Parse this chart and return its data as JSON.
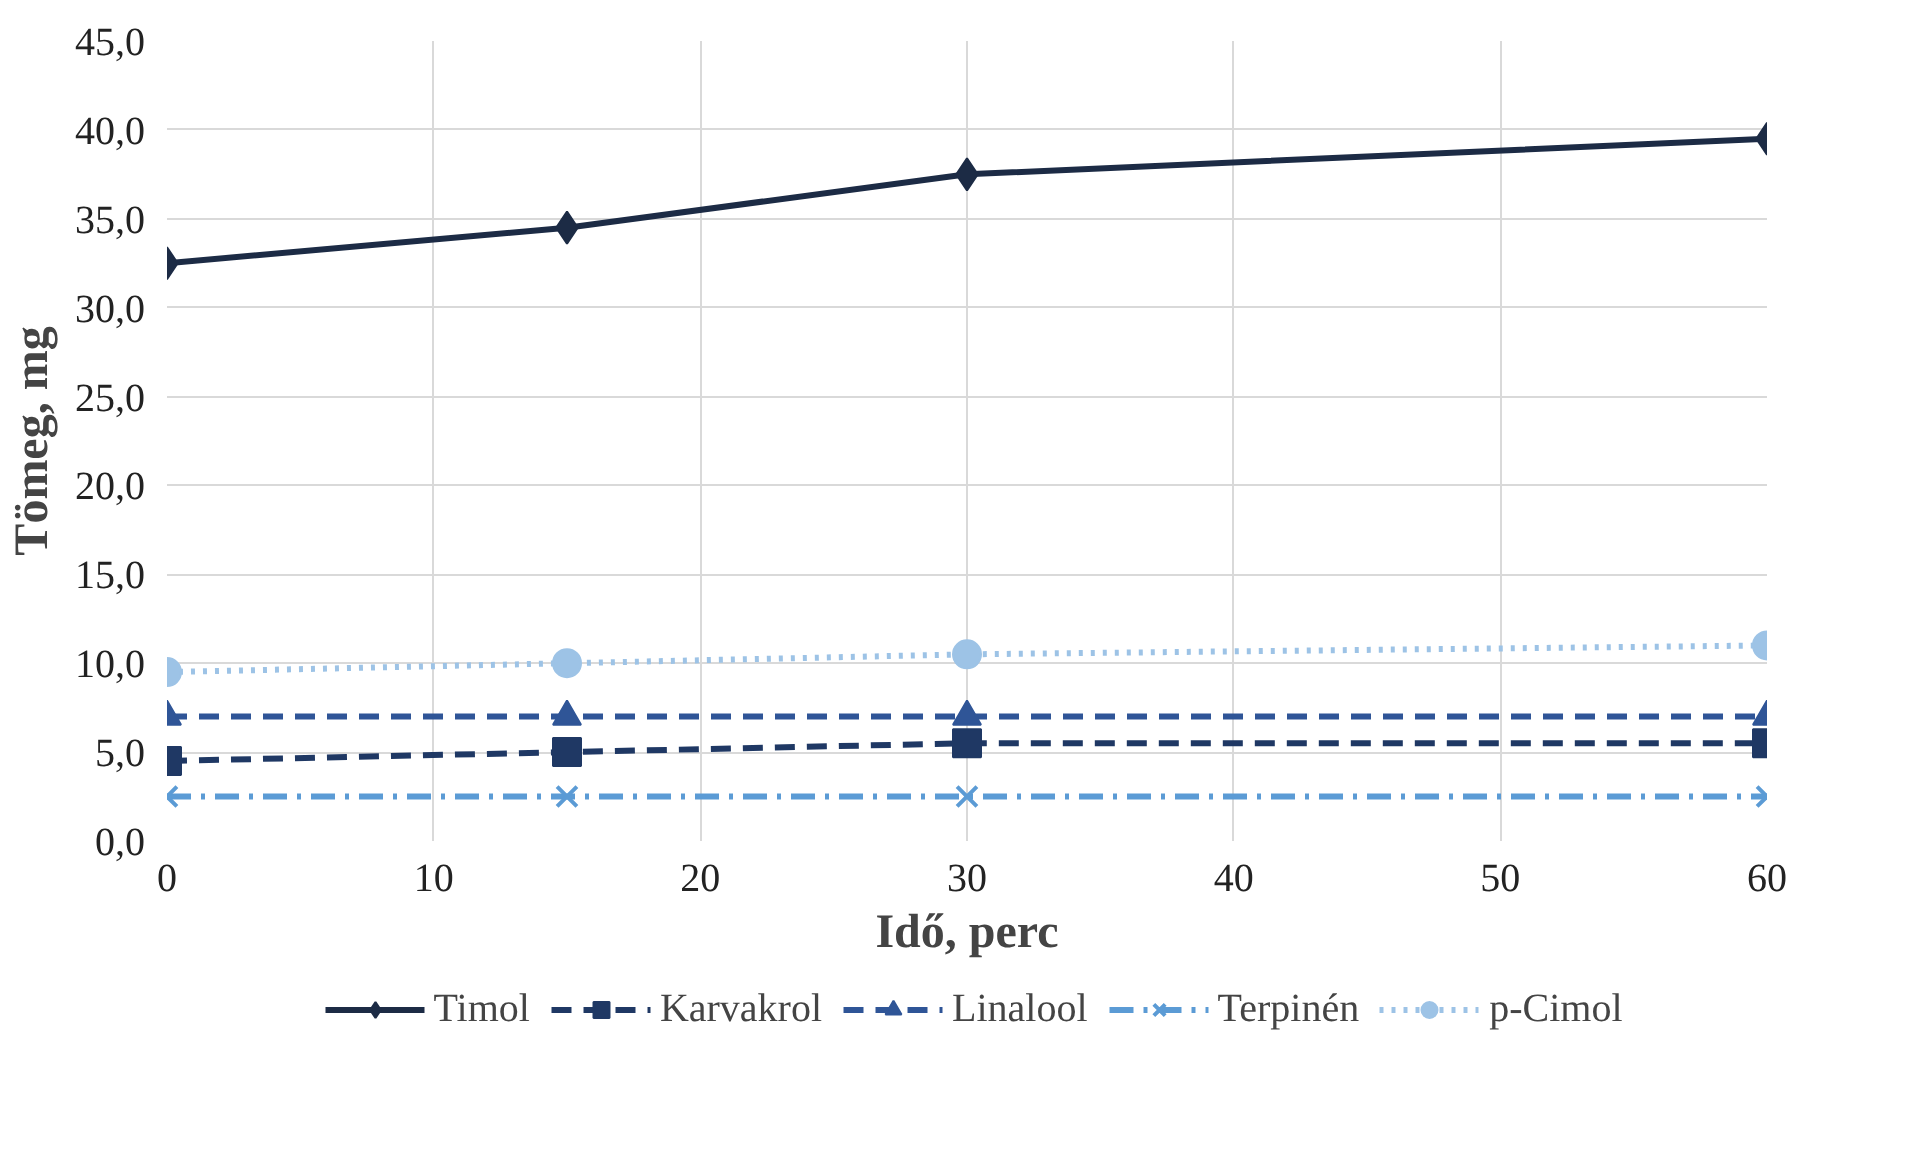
{
  "chart_data": {
    "type": "line",
    "xlabel": "Idő, perc",
    "ylabel": "Tömeg, mg",
    "x": [
      0,
      15,
      30,
      60
    ],
    "series": [
      {
        "name": "Timol",
        "color": "#1c2b45",
        "values": [
          32.5,
          34.5,
          37.5,
          39.5
        ],
        "marker": "diamond",
        "line_style": "solid"
      },
      {
        "name": "Karvakrol",
        "color": "#1f3864",
        "values": [
          4.5,
          5.0,
          5.5,
          5.5
        ],
        "marker": "square",
        "line_style": "dashed"
      },
      {
        "name": "Linalool",
        "color": "#2f5597",
        "values": [
          7.0,
          7.0,
          7.0,
          7.0
        ],
        "marker": "triangle",
        "line_style": "dashed"
      },
      {
        "name": "Terpinén",
        "color": "#5b9bd5",
        "values": [
          2.5,
          2.5,
          2.5,
          2.5
        ],
        "marker": "cross",
        "line_style": "dashdot"
      },
      {
        "name": "p-Cimol",
        "color": "#9dc3e6",
        "values": [
          9.5,
          10.0,
          10.5,
          11.0
        ],
        "marker": "circle",
        "line_style": "dotted"
      }
    ],
    "xlim": [
      0,
      60
    ],
    "xticks": [
      0,
      10,
      20,
      30,
      40,
      50,
      60
    ],
    "ylim": [
      0,
      45
    ],
    "yticks": [
      {
        "value": 0,
        "label": "0,0"
      },
      {
        "value": 5,
        "label": "5,0"
      },
      {
        "value": 10,
        "label": "10,0"
      },
      {
        "value": 15,
        "label": "15,0"
      },
      {
        "value": 20,
        "label": "20,0"
      },
      {
        "value": 25,
        "label": "25,0"
      },
      {
        "value": 30,
        "label": "30,0"
      },
      {
        "value": 35,
        "label": "35,0"
      },
      {
        "value": 40,
        "label": "40,0"
      },
      {
        "value": 45,
        "label": "45,0"
      }
    ],
    "grid": true,
    "legend": "bottom"
  }
}
